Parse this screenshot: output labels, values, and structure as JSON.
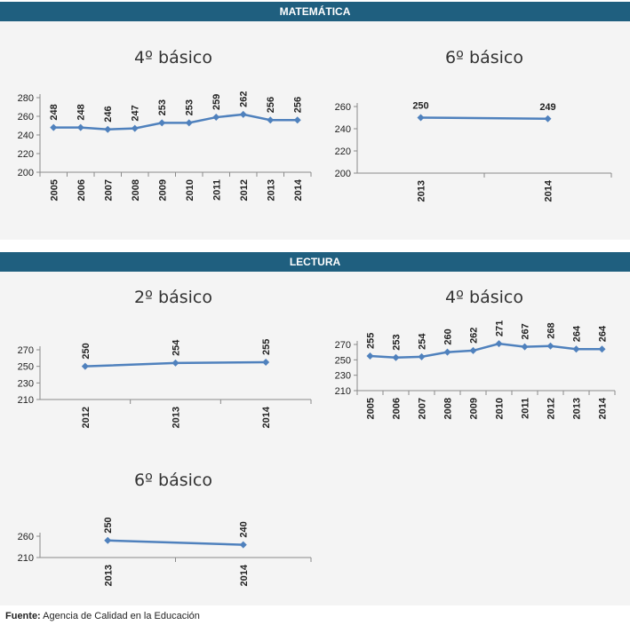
{
  "sections": [
    {
      "label": "MATEMÁTICA"
    },
    {
      "label": "LECTURA"
    }
  ],
  "footer": {
    "label": "Fuente:",
    "text": " Agencia de Calidad en la Educación"
  },
  "colors": {
    "band": "#1f5f7f",
    "line": "#4f81bd",
    "panel": "#f4f4f4"
  },
  "chart_data": [
    {
      "type": "line",
      "title": "4º básico",
      "categories": [
        "2005",
        "2006",
        "2007",
        "2008",
        "2009",
        "2010",
        "2011",
        "2012",
        "2013",
        "2014"
      ],
      "values": [
        248,
        248,
        246,
        247,
        253,
        253,
        259,
        262,
        256,
        256
      ],
      "ylim": [
        200,
        280
      ],
      "yticks": [
        200,
        220,
        240,
        260,
        280
      ]
    },
    {
      "type": "line",
      "title": "6º básico",
      "categories": [
        "2013",
        "2014"
      ],
      "values": [
        250,
        249
      ],
      "ylim": [
        200,
        260
      ],
      "yticks": [
        200,
        220,
        240,
        260
      ]
    },
    {
      "type": "line",
      "title": "2º básico",
      "categories": [
        "2012",
        "2013",
        "2014"
      ],
      "values": [
        250,
        254,
        255
      ],
      "ylim": [
        210,
        270
      ],
      "yticks": [
        210,
        230,
        250,
        270
      ]
    },
    {
      "type": "line",
      "title": "4º básico",
      "categories": [
        "2005",
        "2006",
        "2007",
        "2008",
        "2009",
        "2010",
        "2011",
        "2012",
        "2013",
        "2014"
      ],
      "values": [
        255,
        253,
        254,
        260,
        262,
        271,
        267,
        268,
        264,
        264
      ],
      "ylim": [
        210,
        270
      ],
      "yticks": [
        210,
        230,
        250,
        270
      ]
    },
    {
      "type": "line",
      "title": "6º básico",
      "categories": [
        "2013",
        "2014"
      ],
      "values": [
        250,
        240
      ],
      "ylim": [
        210,
        260
      ],
      "yticks": [
        210,
        260
      ]
    }
  ]
}
